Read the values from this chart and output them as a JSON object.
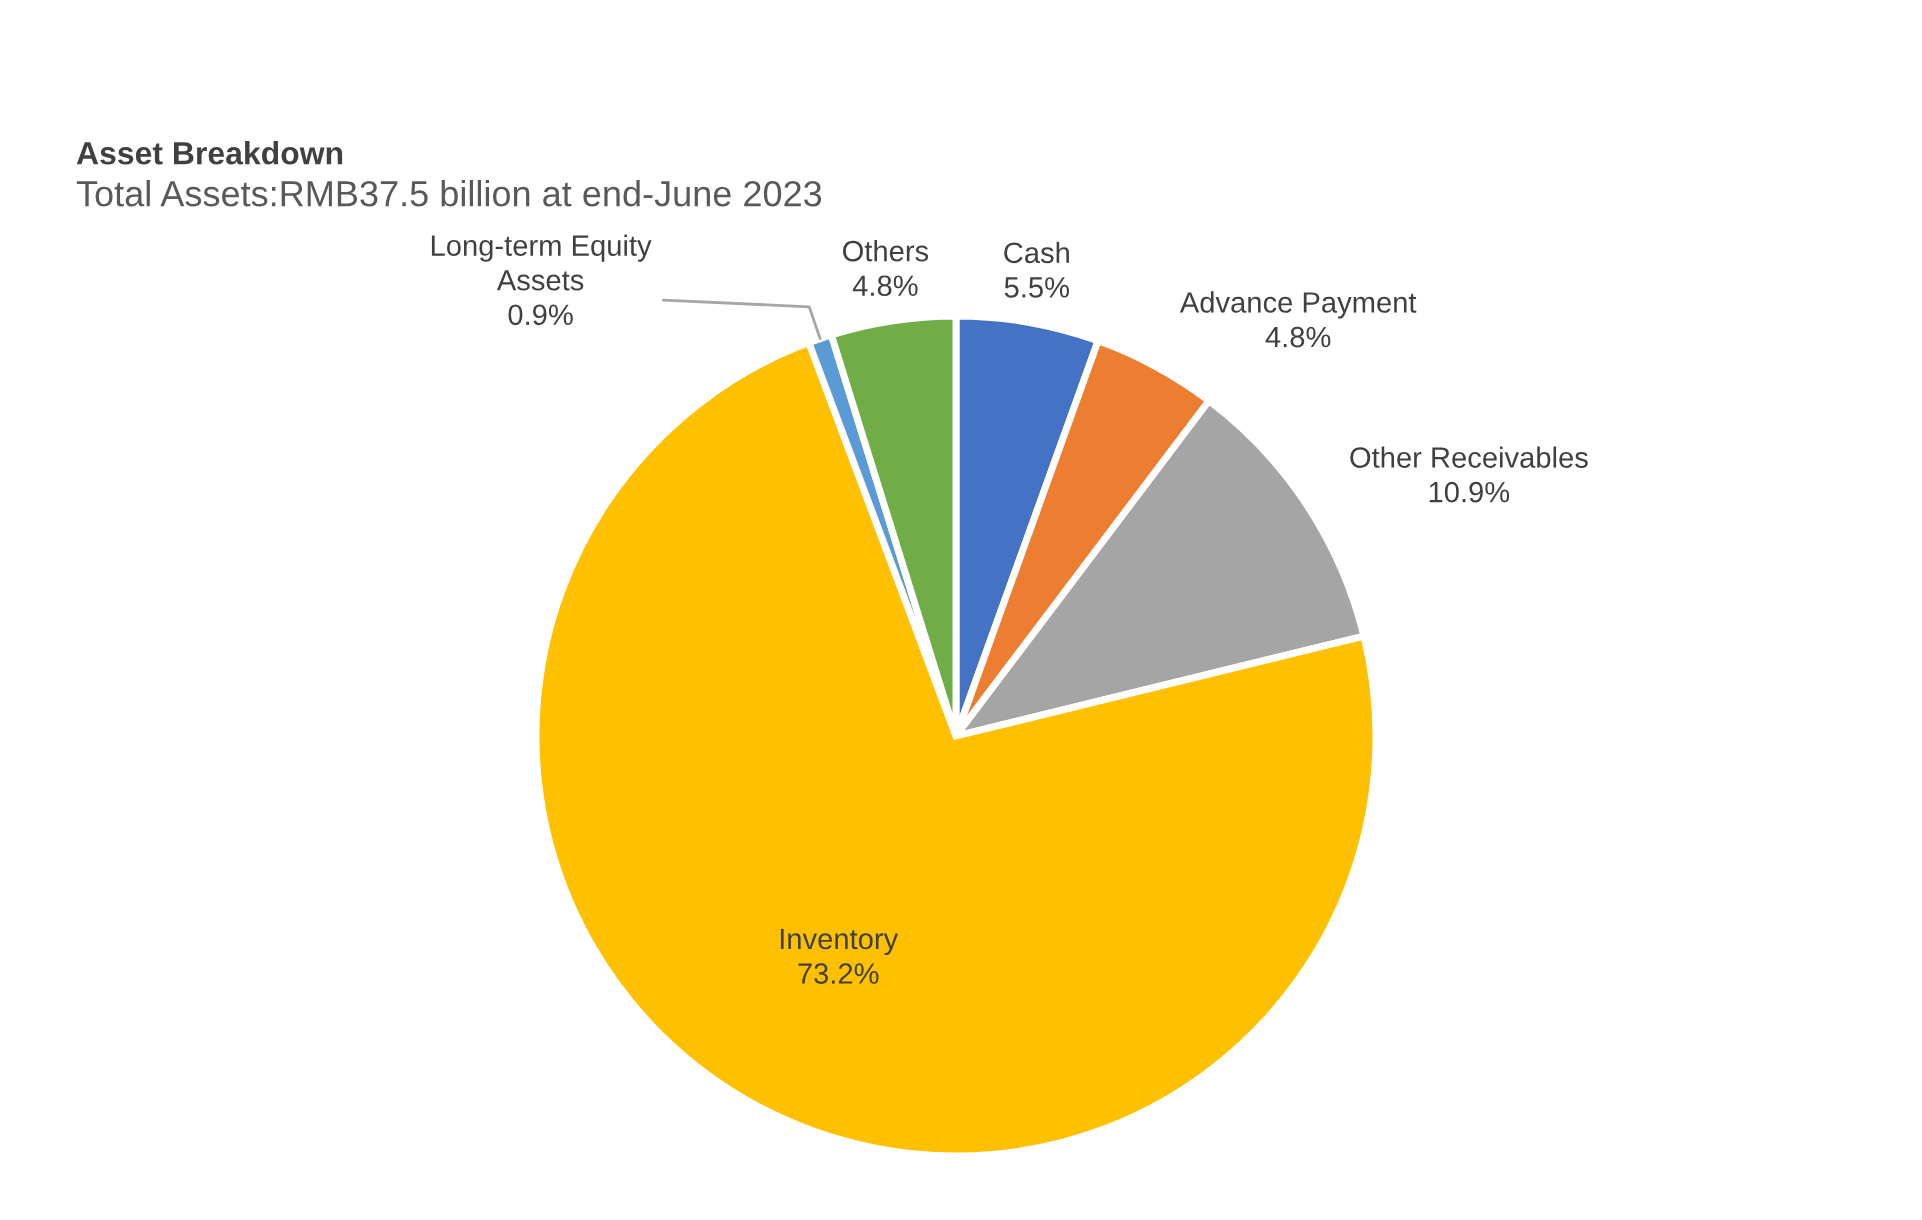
{
  "chart_data": {
    "type": "pie",
    "title": "Asset Breakdown",
    "subtitle": "Total Assets:RMB37.5 billion at end-June 2023",
    "categories": [
      "Cash",
      "Advance Payment",
      "Other Receivables",
      "Inventory",
      "Long-term Equity\nAssets",
      "Others"
    ],
    "values": [
      5.5,
      4.8,
      10.9,
      73.2,
      0.9,
      4.8
    ],
    "colors": [
      "#4472c4",
      "#ed7d31",
      "#a5a5a5",
      "#ffc000",
      "#5b9bd5",
      "#70ad47"
    ],
    "value_labels": [
      "5.5%",
      "4.8%",
      "10.9%",
      "73.2%",
      "0.9%",
      "4.8%"
    ],
    "legend": false
  }
}
